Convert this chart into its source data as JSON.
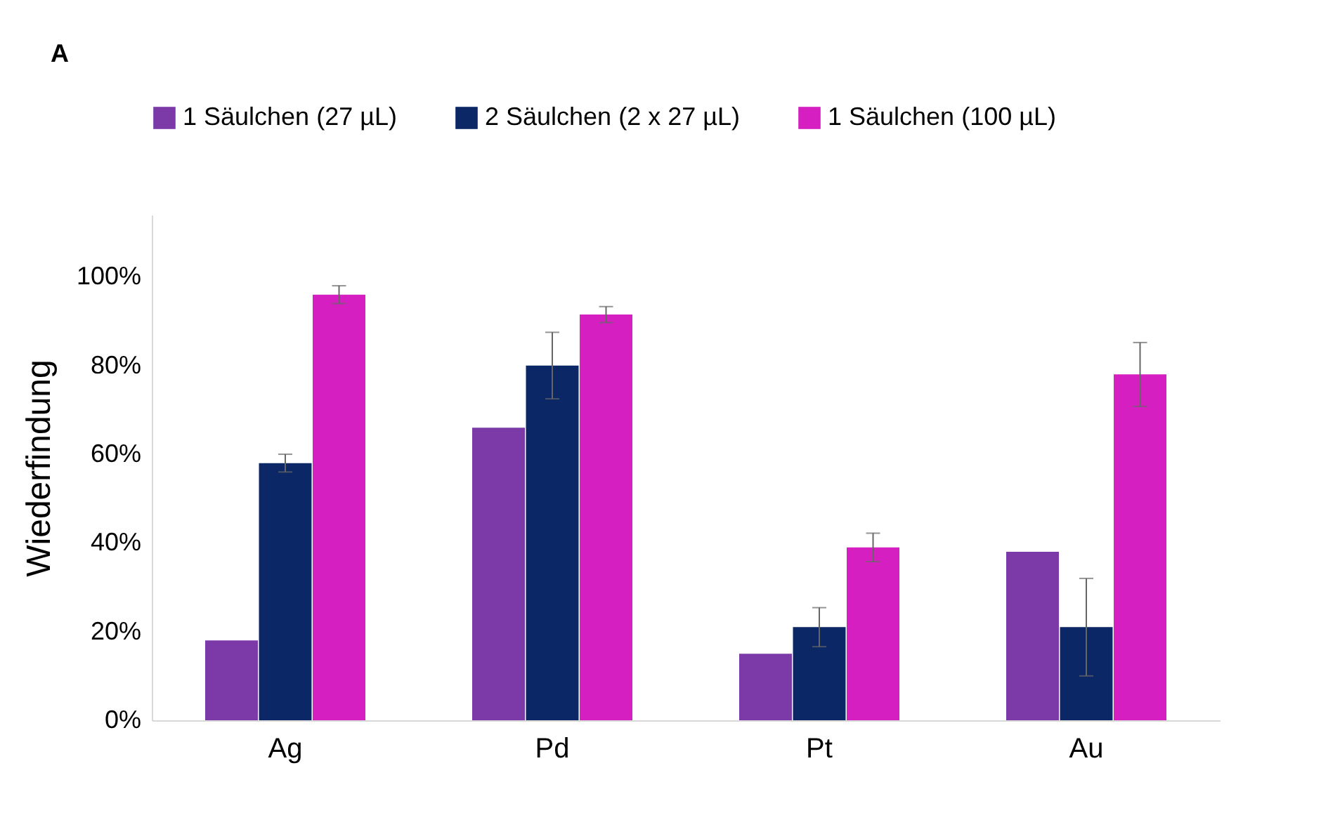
{
  "chart_data": {
    "type": "bar",
    "ylabel": "Wiederfindung",
    "annotations": [
      "A"
    ],
    "categories": [
      "Ag",
      "Pd",
      "Pt",
      "Au"
    ],
    "series": [
      {
        "name": "1 Säulchen (27 µL)",
        "color": "#7b3aa8",
        "values": [
          18,
          66,
          15,
          38
        ]
      },
      {
        "name": "2 Säulchen (2 x 27 µL)",
        "color": "#0b2766",
        "values": [
          58,
          80,
          21,
          21
        ],
        "errors": [
          2,
          7.5,
          4.4,
          11
        ]
      },
      {
        "name": "1 Säulchen (100 µL)",
        "color": "#d61fc0",
        "values": [
          96,
          91.5,
          39,
          78
        ],
        "errors": [
          2,
          1.8,
          3.2,
          7.2
        ]
      }
    ],
    "ylim": [
      0,
      114
    ],
    "yticks": [
      {
        "value": 0,
        "label": "0%"
      },
      {
        "value": 20,
        "label": "20%"
      },
      {
        "value": 40,
        "label": "40%"
      },
      {
        "value": 60,
        "label": "60%"
      },
      {
        "value": 80,
        "label": "80%"
      },
      {
        "value": 100,
        "label": "100%"
      }
    ],
    "grid": false,
    "legend": "top"
  }
}
